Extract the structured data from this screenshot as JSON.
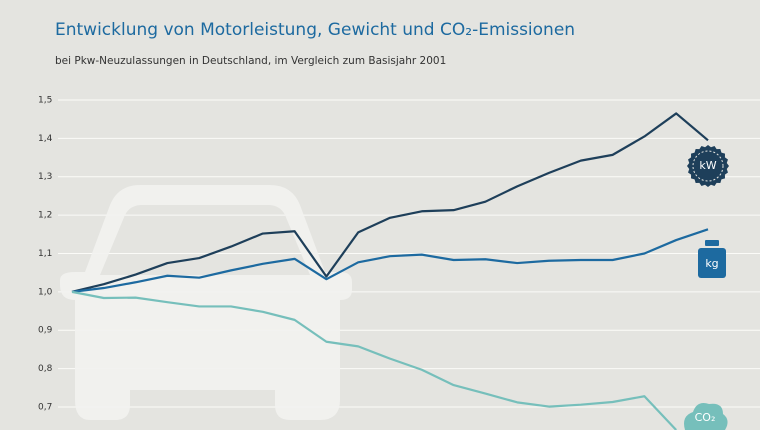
{
  "chart_data": {
    "type": "line",
    "title": "Entwicklung von Motorleistung, Gewicht und CO₂-Emissionen",
    "subtitle": "bei Pkw-Neuzulassungen in Deutschland, im Vergleich zum Basisjahr 2001",
    "categories": [
      null,
      null,
      null,
      null,
      null,
      null,
      null,
      null,
      null,
      null,
      null,
      null,
      null,
      null,
      null,
      null,
      null,
      null,
      null,
      null,
      null
    ],
    "series": [
      {
        "name": "kW",
        "color": "#1e3f5a",
        "values": [
          1.0,
          1.02,
          1.045,
          1.075,
          1.088,
          1.118,
          1.152,
          1.158,
          1.04,
          1.155,
          1.193,
          1.21,
          1.213,
          1.235,
          1.275,
          1.31,
          1.342,
          1.357,
          1.405,
          1.465,
          1.395
        ]
      },
      {
        "name": "kg",
        "color": "#1d6aa0",
        "values": [
          1.0,
          1.01,
          1.025,
          1.042,
          1.037,
          1.056,
          1.073,
          1.086,
          1.033,
          1.077,
          1.093,
          1.097,
          1.083,
          1.085,
          1.075,
          1.081,
          1.083,
          1.083,
          1.1,
          1.135,
          1.163
        ]
      },
      {
        "name": "CO₂",
        "color": "#76bfbb",
        "values": [
          1.0,
          0.984,
          0.985,
          0.973,
          0.962,
          0.962,
          0.948,
          0.927,
          0.87,
          0.858,
          0.826,
          0.797,
          0.757,
          0.735,
          0.712,
          0.701,
          0.706,
          0.713,
          0.728,
          0.64,
          null
        ]
      }
    ],
    "ylim": [
      0.64,
      1.5
    ],
    "yticks": [
      {
        "value": 0.7,
        "label": "0,7"
      },
      {
        "value": 0.8,
        "label": "0,8"
      },
      {
        "value": 0.9,
        "label": "0,9"
      },
      {
        "value": 1.0,
        "label": "1,0"
      },
      {
        "value": 1.1,
        "label": "1,1"
      },
      {
        "value": 1.2,
        "label": "1,2"
      },
      {
        "value": 1.3,
        "label": "1,3"
      },
      {
        "value": 1.4,
        "label": "1,4"
      },
      {
        "value": 1.5,
        "label": "1,5"
      }
    ],
    "grid": true
  }
}
